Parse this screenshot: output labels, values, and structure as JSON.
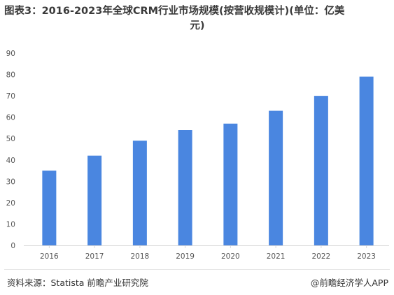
{
  "title_line1": "图表3：2016-2023年全球CRM行业市场规模(按营收规模计)(单位：亿美",
  "title_line2": "元)",
  "source": "资料来源：Statista 前瞻产业研究院",
  "brand": "@前瞻经济学人APP",
  "colors": {
    "bar": "#4a86e0",
    "axis": "#d9d9d9",
    "tick_text": "#555555"
  },
  "chart_data": {
    "type": "bar",
    "categories": [
      "2016",
      "2017",
      "2018",
      "2019",
      "2020",
      "2021",
      "2022",
      "2023"
    ],
    "values": [
      35,
      42,
      49,
      54,
      57,
      63,
      70,
      79
    ],
    "ylim": [
      0,
      90
    ],
    "yticks": [
      0,
      10,
      20,
      30,
      40,
      50,
      60,
      70,
      80,
      90
    ],
    "grid": false,
    "legend": "none"
  }
}
